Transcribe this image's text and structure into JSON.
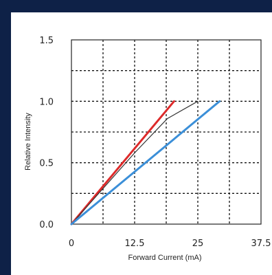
{
  "chart_data": {
    "type": "line",
    "xlabel": "Forward Current (mA)",
    "ylabel": "Relative Intensity",
    "xlim": [
      0,
      37.5
    ],
    "ylim": [
      0,
      1.5
    ],
    "x_ticks": [
      0,
      12.5,
      25,
      37.5
    ],
    "x_tick_labels": [
      "0",
      "12.5",
      "25",
      "37.5"
    ],
    "y_ticks": [
      0,
      0.5,
      1.0,
      1.5
    ],
    "y_tick_labels": [
      "0.0",
      "0.5",
      "1.0",
      "1.5"
    ],
    "grid": true,
    "grid_step_x": 6.25,
    "grid_step_y": 0.25,
    "series": [
      {
        "color": "#dd2a2a",
        "x": [
          0,
          20.3
        ],
        "y": [
          0,
          1.0
        ]
      },
      {
        "color": "#333333",
        "x": [
          0,
          12.5,
          19,
          25
        ],
        "y": [
          0,
          0.58,
          0.86,
          1.0
        ]
      },
      {
        "color": "#3b8fd8",
        "x": [
          0,
          29.3
        ],
        "y": [
          0,
          1.0
        ]
      }
    ]
  }
}
